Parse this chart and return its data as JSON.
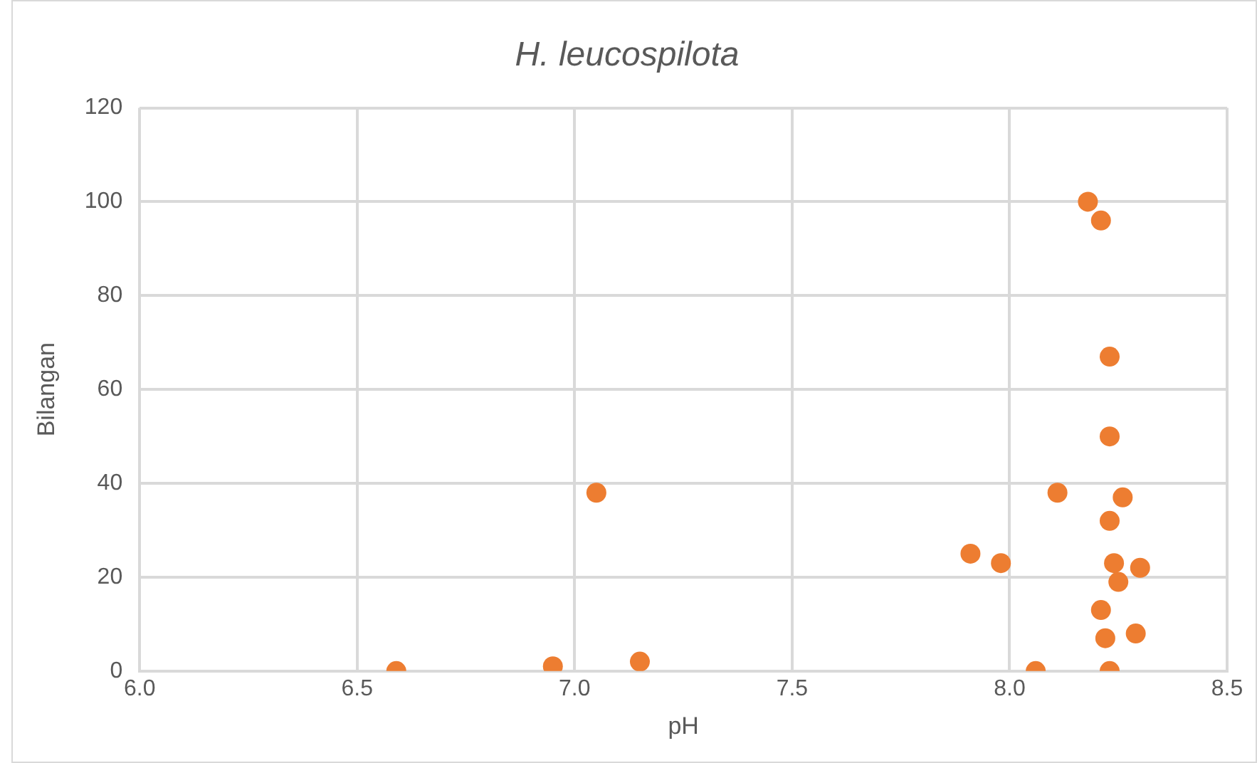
{
  "chart_data": {
    "type": "scatter",
    "title": "H. leucospilota",
    "xlabel": "pH",
    "ylabel": "Bilangan",
    "x": [
      6.59,
      6.95,
      7.05,
      7.15,
      7.91,
      7.98,
      8.06,
      8.11,
      8.18,
      8.21,
      8.23,
      8.23,
      8.26,
      8.23,
      8.24,
      8.3,
      8.25,
      8.21,
      8.22,
      8.29,
      8.23
    ],
    "values": [
      0,
      1,
      38,
      2,
      25,
      23,
      0,
      38,
      100,
      96,
      67,
      50,
      37,
      32,
      23,
      22,
      19,
      13,
      7,
      8,
      0
    ],
    "color": "#ed7d31",
    "marker": "circle",
    "xlim": [
      6,
      8.5
    ],
    "xticks": [
      {
        "value": 6,
        "label": "6.0"
      },
      {
        "value": 6.5,
        "label": "6.5"
      },
      {
        "value": 7,
        "label": "7.0"
      },
      {
        "value": 7.5,
        "label": "7.5"
      },
      {
        "value": 8,
        "label": "8.0"
      },
      {
        "value": 8.5,
        "label": "8.5"
      }
    ],
    "ylim": [
      0,
      120
    ],
    "yticks": [
      0,
      20,
      40,
      60,
      80,
      100,
      120
    ],
    "grid": true,
    "legend": false
  }
}
